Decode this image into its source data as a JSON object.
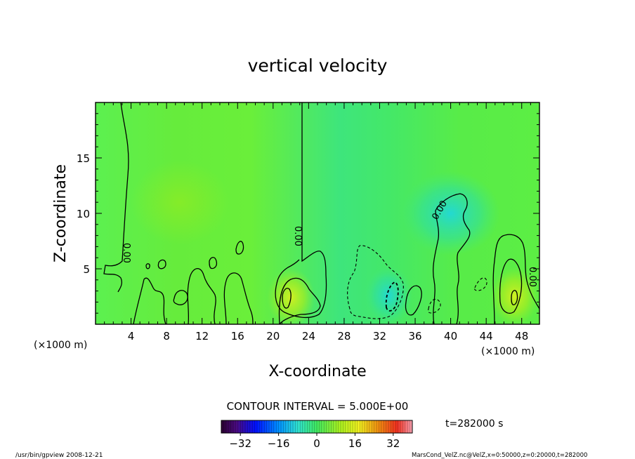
{
  "chart_data": {
    "type": "heatmap",
    "title": "vertical velocity",
    "xlabel": "X-coordinate",
    "ylabel": "Z-coordinate",
    "x_unit_left": "(×1000 m)",
    "x_unit_right": "(×1000 m)",
    "xlim": [
      0,
      50
    ],
    "ylim": [
      0,
      20
    ],
    "x_ticks": [
      4,
      8,
      12,
      16,
      20,
      24,
      28,
      32,
      36,
      40,
      44,
      48
    ],
    "y_ticks": [
      5,
      10,
      15
    ],
    "contour_interval_label": "CONTOUR INTERVAL = 5.000E+00",
    "contour_zero_label": "0.00",
    "time_label": "t=282000 s",
    "colorbar": {
      "range": [
        -40,
        40
      ],
      "ticks": [
        -32,
        -16,
        0,
        16,
        32
      ]
    },
    "footer_left": "/usr/bin/gpview  2008-12-21",
    "footer_right": "MarsCond_VelZ.nc@VelZ,x=0:50000,z=0:20000,t=282000",
    "features": [
      {
        "x": 22.0,
        "z": 2.4,
        "value": 16,
        "type": "updraft"
      },
      {
        "x": 47.2,
        "z": 2.5,
        "value": 15,
        "type": "updraft"
      },
      {
        "x": 33.0,
        "z": 2.6,
        "value": -12,
        "type": "downdraft"
      },
      {
        "x": 9.5,
        "z": 11.0,
        "value": 5,
        "type": "updraft"
      },
      {
        "x": 40.0,
        "z": 10.0,
        "value": -4,
        "type": "downdraft"
      }
    ]
  }
}
